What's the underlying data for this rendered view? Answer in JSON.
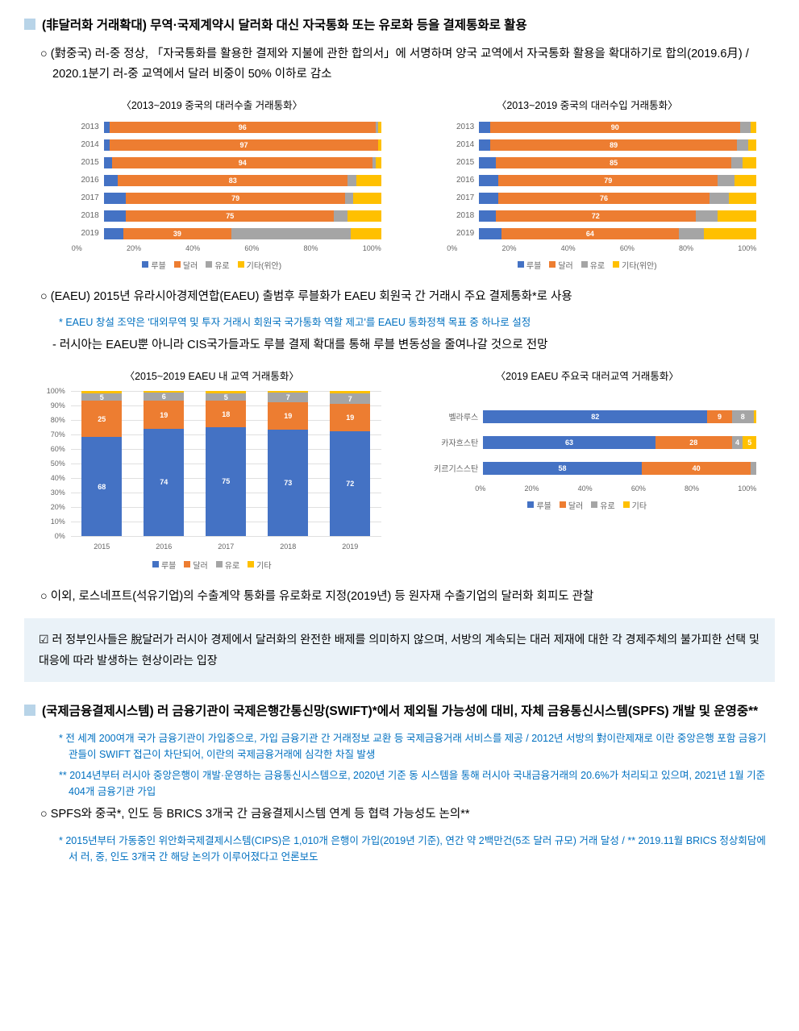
{
  "colors": {
    "ruble": "#4472c4",
    "dollar": "#ed7d31",
    "euro": "#a5a5a5",
    "other": "#ffc000",
    "note_blue": "#0070c0",
    "callout_bg": "#eaf2f8",
    "sq_blue": "#b8d4e8"
  },
  "sec1": {
    "title": "(非달러화 거래확대) 무역·국제계약시 달러화 대신 자국통화 또는 유로화 등을 결제통화로 활용",
    "b1": "(對중국) 러-중 정상, 「자국통화를 활용한 결제와 지불에 관한 합의서」에 서명하며 양국 교역에서 자국통화 활용을 확대하기로 합의(2019.6月) / 2020.1분기 러-중 교역에서 달러 비중이 50% 이하로 감소"
  },
  "chart1": {
    "title": "〈2013~2019 중국의 대러수출 거래통화〉",
    "years": [
      "2013",
      "2014",
      "2015",
      "2016",
      "2017",
      "2018",
      "2019"
    ],
    "ruble": [
      2,
      2,
      3,
      5,
      8,
      8,
      7
    ],
    "dollar": [
      96,
      97,
      94,
      83,
      79,
      75,
      39
    ],
    "euro": [
      1,
      0,
      1,
      3,
      3,
      5,
      43
    ],
    "other": [
      1,
      1,
      2,
      9,
      10,
      12,
      11
    ],
    "xticks": [
      "0%",
      "20%",
      "40%",
      "60%",
      "80%",
      "100%"
    ],
    "legend": [
      "루블",
      "달러",
      "유로",
      "기타(위안)"
    ]
  },
  "chart2": {
    "title": "〈2013~2019 중국의 대러수입 거래통화〉",
    "years": [
      "2013",
      "2014",
      "2015",
      "2016",
      "2017",
      "2018",
      "2019"
    ],
    "ruble": [
      4,
      4,
      6,
      7,
      7,
      6,
      8
    ],
    "dollar": [
      90,
      89,
      85,
      79,
      76,
      72,
      64
    ],
    "euro": [
      4,
      4,
      4,
      6,
      7,
      8,
      9
    ],
    "other": [
      2,
      3,
      5,
      8,
      10,
      14,
      19
    ],
    "xticks": [
      "0%",
      "20%",
      "40%",
      "60%",
      "80%",
      "100%"
    ],
    "legend": [
      "루블",
      "달러",
      "유로",
      "기타(위안)"
    ]
  },
  "sec2": {
    "b1": "(EAEU) 2015년 유라시아경제연합(EAEU) 출범후 루블화가 EAEU 회원국 간 거래시 주요 결제통화*로 사용",
    "note1": "* EAEU 창설 조약은 '대외무역 및 투자 거래시 회원국 국가통화 역할 제고'를 EAEU 통화정책 목표 중 하나로 설정",
    "dash1": "러시아는 EAEU뿐 아니라 CIS국가들과도 루블 결제 확대를 통해 루블 변동성을 줄여나갈 것으로 전망"
  },
  "chart3": {
    "title": "〈2015~2019 EAEU 내 교역 거래통화〉",
    "years": [
      "2015",
      "2016",
      "2017",
      "2018",
      "2019"
    ],
    "ruble": [
      68,
      74,
      75,
      73,
      72
    ],
    "dollar": [
      25,
      19,
      18,
      19,
      19
    ],
    "euro": [
      5,
      6,
      5,
      7,
      7
    ],
    "other": [
      2,
      1,
      2,
      1,
      2
    ],
    "yticks": [
      "0%",
      "10%",
      "20%",
      "30%",
      "40%",
      "50%",
      "60%",
      "70%",
      "80%",
      "90%",
      "100%"
    ],
    "legend": [
      "루블",
      "달러",
      "유로",
      "기타"
    ]
  },
  "chart4": {
    "title": "〈2019 EAEU 주요국 대러교역 거래통화〉",
    "countries": [
      "벨라루스",
      "카자흐스탄",
      "키르기스스탄"
    ],
    "ruble": [
      82,
      63,
      58
    ],
    "dollar": [
      9,
      28,
      40
    ],
    "euro": [
      8,
      4,
      2
    ],
    "other": [
      1,
      5,
      0
    ],
    "xticks": [
      "0%",
      "20%",
      "40%",
      "60%",
      "80%",
      "100%"
    ],
    "legend": [
      "루블",
      "달러",
      "유로",
      "기타"
    ]
  },
  "sec3": {
    "b1": "이외, 로스네프트(석유기업)의 수출계약 통화를 유로화로 지정(2019년) 등 원자재 수출기업의 달러화 회피도 관찰"
  },
  "callout": {
    "text": "☑ 러 정부인사들은 脫달러가 러시아 경제에서 달러화의 완전한 배제를 의미하지 않으며, 서방의 계속되는 대러 제재에 대한 각 경제주체의 불가피한 선택 및 대응에 따라 발생하는 현상이라는 입장"
  },
  "sec4": {
    "title": "(국제금융결제시스템) 러 금융기관이 국제은행간통신망(SWIFT)*에서 제외될 가능성에 대비, 자체 금융통신시스템(SPFS) 개발 및 운영중**",
    "note1": "* 전 세계 200여개 국가 금융기관이 가입중으로, 가입 금융기관 간 거래정보 교환 등 국제금융거래 서비스를 제공 / 2012년 서방의 對이란제재로 이란 중앙은행 포함 금융기관들이 SWIFT 접근이 차단되어, 이란의 국제금융거래에 심각한 차질 발생",
    "note2": "** 2014년부터 러시아 중앙은행이 개발·운영하는 금융통신시스템으로, 2020년 기준 동 시스템을 통해 러시아 국내금융거래의 20.6%가 처리되고 있으며, 2021년 1월 기준 404개 금융기관 가입",
    "b1": "SPFS와 중국*, 인도 등 BRICS 3개국 간 금융결제시스템 연계 등 협력 가능성도 논의**",
    "note3": "* 2015년부터 가동중인 위안화국제결제시스템(CIPS)은 1,010개 은행이 가입(2019년 기준), 연간 약 2백만건(5조 달러 규모) 거래 달성 / ** 2019.11월 BRICS 정상회담에서 러, 중, 인도 3개국 간 해당 논의가 이루어졌다고 언론보도"
  }
}
